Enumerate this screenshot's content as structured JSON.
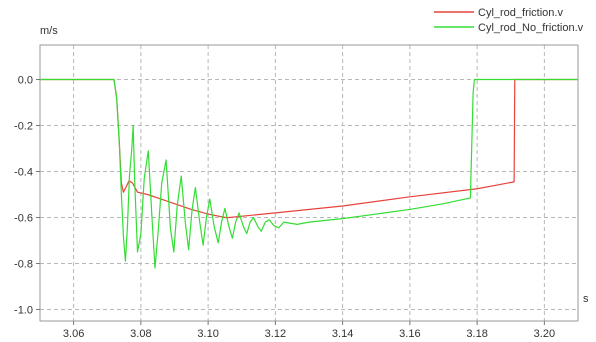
{
  "chart_data": {
    "type": "line",
    "ylabel": "m/s",
    "xlabel": "s",
    "xlim": [
      3.05,
      3.21
    ],
    "ylim": [
      -1.05,
      0.15
    ],
    "x_ticks": [
      3.06,
      3.08,
      3.1,
      3.12,
      3.14,
      3.16,
      3.18,
      3.2
    ],
    "x_tick_labels": [
      "3.06",
      "3.08",
      "3.10",
      "3.12",
      "3.14",
      "3.16",
      "3.18",
      "3.20"
    ],
    "y_ticks": [
      0.0,
      -0.2,
      -0.4,
      -0.6,
      -0.8,
      -1.0
    ],
    "y_tick_labels": [
      "0.0",
      "-0.2",
      "-0.4",
      "-0.6",
      "-0.8",
      "-1.0"
    ],
    "grid": true,
    "legend_position": "top-right",
    "series": [
      {
        "name": "Cyl_rod_friction.v",
        "color": "#e8433b",
        "points": [
          [
            3.05,
            0.0
          ],
          [
            3.072,
            0.0
          ],
          [
            3.0728,
            -0.08
          ],
          [
            3.0735,
            -0.25
          ],
          [
            3.0742,
            -0.45
          ],
          [
            3.0748,
            -0.49
          ],
          [
            3.0755,
            -0.47
          ],
          [
            3.0765,
            -0.44
          ],
          [
            3.0775,
            -0.45
          ],
          [
            3.079,
            -0.49
          ],
          [
            3.082,
            -0.5
          ],
          [
            3.086,
            -0.52
          ],
          [
            3.09,
            -0.54
          ],
          [
            3.095,
            -0.565
          ],
          [
            3.1,
            -0.585
          ],
          [
            3.1055,
            -0.601
          ],
          [
            3.12,
            -0.58
          ],
          [
            3.14,
            -0.55
          ],
          [
            3.16,
            -0.51
          ],
          [
            3.18,
            -0.475
          ],
          [
            3.191,
            -0.445
          ],
          [
            3.1912,
            0.0
          ],
          [
            3.21,
            0.0
          ]
        ]
      },
      {
        "name": "Cyl_rod_No_friction.v",
        "color": "#33dd33",
        "points": [
          [
            3.05,
            0.0
          ],
          [
            3.072,
            0.0
          ],
          [
            3.0728,
            -0.08
          ],
          [
            3.0736,
            -0.28
          ],
          [
            3.0742,
            -0.5
          ],
          [
            3.0748,
            -0.68
          ],
          [
            3.0754,
            -0.79
          ],
          [
            3.076,
            -0.64
          ],
          [
            3.0766,
            -0.42
          ],
          [
            3.0773,
            -0.3
          ],
          [
            3.0777,
            -0.2
          ],
          [
            3.0782,
            -0.46
          ],
          [
            3.079,
            -0.75
          ],
          [
            3.08,
            -0.67
          ],
          [
            3.081,
            -0.43
          ],
          [
            3.0822,
            -0.31
          ],
          [
            3.0833,
            -0.6
          ],
          [
            3.0842,
            -0.82
          ],
          [
            3.0852,
            -0.65
          ],
          [
            3.0862,
            -0.45
          ],
          [
            3.0875,
            -0.35
          ],
          [
            3.0888,
            -0.65
          ],
          [
            3.0898,
            -0.75
          ],
          [
            3.0908,
            -0.55
          ],
          [
            3.092,
            -0.42
          ],
          [
            3.0932,
            -0.62
          ],
          [
            3.0942,
            -0.74
          ],
          [
            3.0952,
            -0.57
          ],
          [
            3.0962,
            -0.47
          ],
          [
            3.0975,
            -0.62
          ],
          [
            3.0985,
            -0.72
          ],
          [
            3.0995,
            -0.6
          ],
          [
            3.1005,
            -0.52
          ],
          [
            3.1018,
            -0.64
          ],
          [
            3.103,
            -0.71
          ],
          [
            3.104,
            -0.62
          ],
          [
            3.105,
            -0.56
          ],
          [
            3.1062,
            -0.64
          ],
          [
            3.1072,
            -0.69
          ],
          [
            3.1082,
            -0.62
          ],
          [
            3.1092,
            -0.58
          ],
          [
            3.1105,
            -0.64
          ],
          [
            3.1115,
            -0.67
          ],
          [
            3.1125,
            -0.62
          ],
          [
            3.1135,
            -0.6
          ],
          [
            3.1148,
            -0.64
          ],
          [
            3.1158,
            -0.66
          ],
          [
            3.117,
            -0.62
          ],
          [
            3.1182,
            -0.61
          ],
          [
            3.1195,
            -0.635
          ],
          [
            3.121,
            -0.645
          ],
          [
            3.1225,
            -0.62
          ],
          [
            3.1245,
            -0.625
          ],
          [
            3.1265,
            -0.63
          ],
          [
            3.13,
            -0.62
          ],
          [
            3.14,
            -0.605
          ],
          [
            3.15,
            -0.585
          ],
          [
            3.16,
            -0.565
          ],
          [
            3.17,
            -0.54
          ],
          [
            3.178,
            -0.515
          ],
          [
            3.1788,
            -0.06
          ],
          [
            3.1792,
            0.0
          ],
          [
            3.21,
            0.0
          ]
        ]
      }
    ]
  }
}
